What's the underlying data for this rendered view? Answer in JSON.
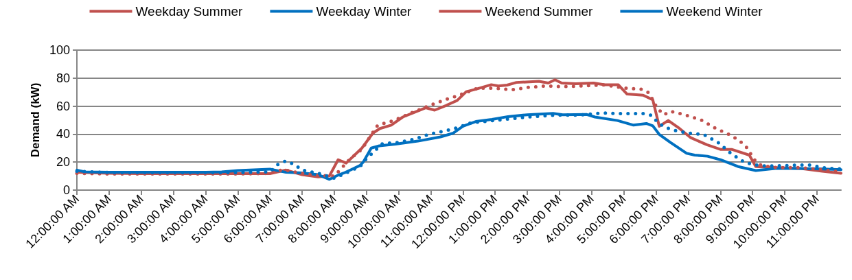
{
  "chart_data": {
    "type": "line",
    "ylabel": "Demand (kW)",
    "xlim": [
      0,
      23.75
    ],
    "ylim": [
      0,
      100
    ],
    "yticks": [
      0,
      20,
      40,
      60,
      80,
      100
    ],
    "xticks": [
      {
        "value": 0,
        "label": "12:00:00 AM"
      },
      {
        "value": 1,
        "label": "1:00:00 AM"
      },
      {
        "value": 2,
        "label": "2:00:00 AM"
      },
      {
        "value": 3,
        "label": "3:00:00 AM"
      },
      {
        "value": 4,
        "label": "4:00:00 AM"
      },
      {
        "value": 5,
        "label": "5:00:00 AM"
      },
      {
        "value": 6,
        "label": "6:00:00 AM"
      },
      {
        "value": 7,
        "label": "7:00:00 AM"
      },
      {
        "value": 8,
        "label": "8:00:00 AM"
      },
      {
        "value": 9,
        "label": "9:00:00 AM"
      },
      {
        "value": 10,
        "label": "10:00:00 AM"
      },
      {
        "value": 11,
        "label": "11:00:00 AM"
      },
      {
        "value": 12,
        "label": "12:00:00 PM"
      },
      {
        "value": 13,
        "label": "1:00:00 PM"
      },
      {
        "value": 14,
        "label": "2:00:00 PM"
      },
      {
        "value": 15,
        "label": "3:00:00 PM"
      },
      {
        "value": 16,
        "label": "4:00:00 PM"
      },
      {
        "value": 17,
        "label": "5:00:00 PM"
      },
      {
        "value": 18,
        "label": "6:00:00 PM"
      },
      {
        "value": 19,
        "label": "7:00:00 PM"
      },
      {
        "value": 20,
        "label": "8:00:00 PM"
      },
      {
        "value": 21,
        "label": "9:00:00 PM"
      },
      {
        "value": 22,
        "label": "10:00:00 PM"
      },
      {
        "value": 23,
        "label": "11:00:00 PM"
      }
    ],
    "grid": "y",
    "legend": "top",
    "marker": "none",
    "series": [
      {
        "name": "Weekday Summer",
        "color": "#c0504d",
        "line_style": "solid",
        "x": [
          0,
          1,
          2,
          3,
          4,
          5,
          6,
          6.5,
          7,
          7.5,
          7.85,
          8.12,
          8.37,
          8.86,
          9.2,
          9.42,
          9.77,
          10.13,
          10.48,
          10.84,
          11.12,
          11.47,
          11.82,
          12.1,
          12.39,
          12.88,
          13.1,
          13.37,
          13.66,
          14.36,
          14.65,
          14.86,
          15.07,
          15.5,
          16.06,
          16.4,
          16.83,
          17.1,
          17.6,
          17.9,
          18.1,
          18.38,
          18.73,
          19.08,
          19.58,
          20,
          20.35,
          20.9,
          21.1,
          21.76,
          22.46,
          23.17,
          23.75
        ],
        "values": [
          12.7,
          12,
          11.8,
          11.8,
          11.8,
          11.8,
          11.8,
          14.3,
          11,
          9.4,
          10.2,
          21.7,
          19.3,
          30,
          40.7,
          44,
          46.4,
          52.2,
          55.5,
          58.8,
          57.1,
          60.4,
          64,
          70.3,
          72,
          75.3,
          74.4,
          75,
          76.9,
          77.7,
          76.5,
          78.8,
          76.5,
          76,
          76.5,
          75.2,
          75.2,
          68.6,
          67.8,
          64.5,
          45.6,
          49.7,
          44,
          37.4,
          32.4,
          29.1,
          29.1,
          25,
          16.8,
          16,
          15.5,
          13.5,
          12
        ]
      },
      {
        "name": "Weekday Winter",
        "color": "#0070c0",
        "line_style": "solid",
        "x": [
          0,
          0.25,
          1,
          2,
          3,
          4,
          4.5,
          5,
          5.5,
          6,
          6.5,
          7,
          7.5,
          7.85,
          8.15,
          8.35,
          8.8,
          8.9,
          9.15,
          9.4,
          9.9,
          10.6,
          11.3,
          11.7,
          12,
          12.4,
          12.9,
          13.4,
          14,
          14.8,
          15.1,
          15.85,
          16.1,
          16.8,
          17.3,
          17.7,
          17.9,
          18.1,
          18.45,
          18.95,
          19.2,
          19.6,
          20,
          20.55,
          21.1,
          21.75,
          22.5,
          23.2,
          23.75
        ],
        "values": [
          14.3,
          13,
          12.7,
          12.7,
          12.7,
          12.7,
          13,
          14,
          14.5,
          15,
          12.7,
          12.3,
          11,
          7.7,
          11,
          12.7,
          17.6,
          20,
          30,
          31.6,
          32.8,
          35,
          38,
          40.7,
          45.6,
          49,
          50.5,
          52.5,
          53.8,
          54.8,
          53.8,
          54,
          52.2,
          49.7,
          46.4,
          47.6,
          45.9,
          39.8,
          34,
          26.3,
          25,
          24.2,
          21.7,
          16.8,
          14,
          15.5,
          15.5,
          15.1,
          14.6
        ]
      },
      {
        "name": "Weekend Summer",
        "color": "#c0504d",
        "line_style": "dotted",
        "x": [
          0,
          1,
          2,
          3,
          4,
          5,
          6,
          6.25,
          6.5,
          6.75,
          7,
          7.5,
          8,
          8.5,
          8.85,
          9.35,
          9.85,
          10.34,
          11.05,
          11.54,
          11.79,
          12.46,
          13,
          13.5,
          14,
          14.57,
          15.07,
          15.77,
          16.34,
          17.08,
          17.57,
          17.78,
          18.03,
          18.24,
          18.45,
          18.94,
          19.44,
          19.86,
          20.35,
          20.77,
          21.06,
          21.27,
          21.76,
          22.46,
          23.17,
          23.75
        ],
        "values": [
          12,
          11.5,
          11.5,
          11.5,
          11.5,
          11.5,
          12,
          14,
          14.3,
          13,
          12,
          10.5,
          10,
          22.5,
          29,
          46.4,
          49.7,
          54.6,
          61.2,
          65.3,
          67,
          72.8,
          72.8,
          71.6,
          73.3,
          74.4,
          73.9,
          74.4,
          75.2,
          72.8,
          72,
          69.5,
          58.8,
          53.8,
          56.3,
          53.5,
          49.7,
          44,
          39,
          32.1,
          21.7,
          17.6,
          16,
          16,
          14.6,
          13
        ]
      },
      {
        "name": "Weekend Winter",
        "color": "#0070c0",
        "line_style": "dotted",
        "x": [
          0,
          1,
          2,
          3,
          4,
          5,
          6,
          6.25,
          6.5,
          6.75,
          7,
          7.5,
          8,
          8.8,
          9,
          9.5,
          10,
          10.5,
          11,
          11.5,
          11.78,
          12.25,
          12.75,
          13.3,
          14,
          14.8,
          15.55,
          16.05,
          16.34,
          16.83,
          17.6,
          17.85,
          18.03,
          18.24,
          18.5,
          18.98,
          19.47,
          19.93,
          20.35,
          20.77,
          21.27,
          21.76,
          22.54,
          22.8,
          23.3,
          23.75
        ],
        "values": [
          13.5,
          12.5,
          12.5,
          12.5,
          12.5,
          12.5,
          13,
          18.4,
          20.9,
          18.4,
          14.3,
          12,
          8.5,
          16.8,
          22.5,
          33.2,
          34,
          36.5,
          40.2,
          42.6,
          44.3,
          48,
          49.2,
          50.5,
          52.2,
          53.5,
          53.5,
          54.5,
          55.1,
          54.6,
          54.6,
          53.5,
          49,
          45.3,
          43.1,
          40.7,
          39.8,
          34,
          25.8,
          19.6,
          17.3,
          17.3,
          17.9,
          17.9,
          15.6,
          15.1
        ]
      }
    ]
  }
}
